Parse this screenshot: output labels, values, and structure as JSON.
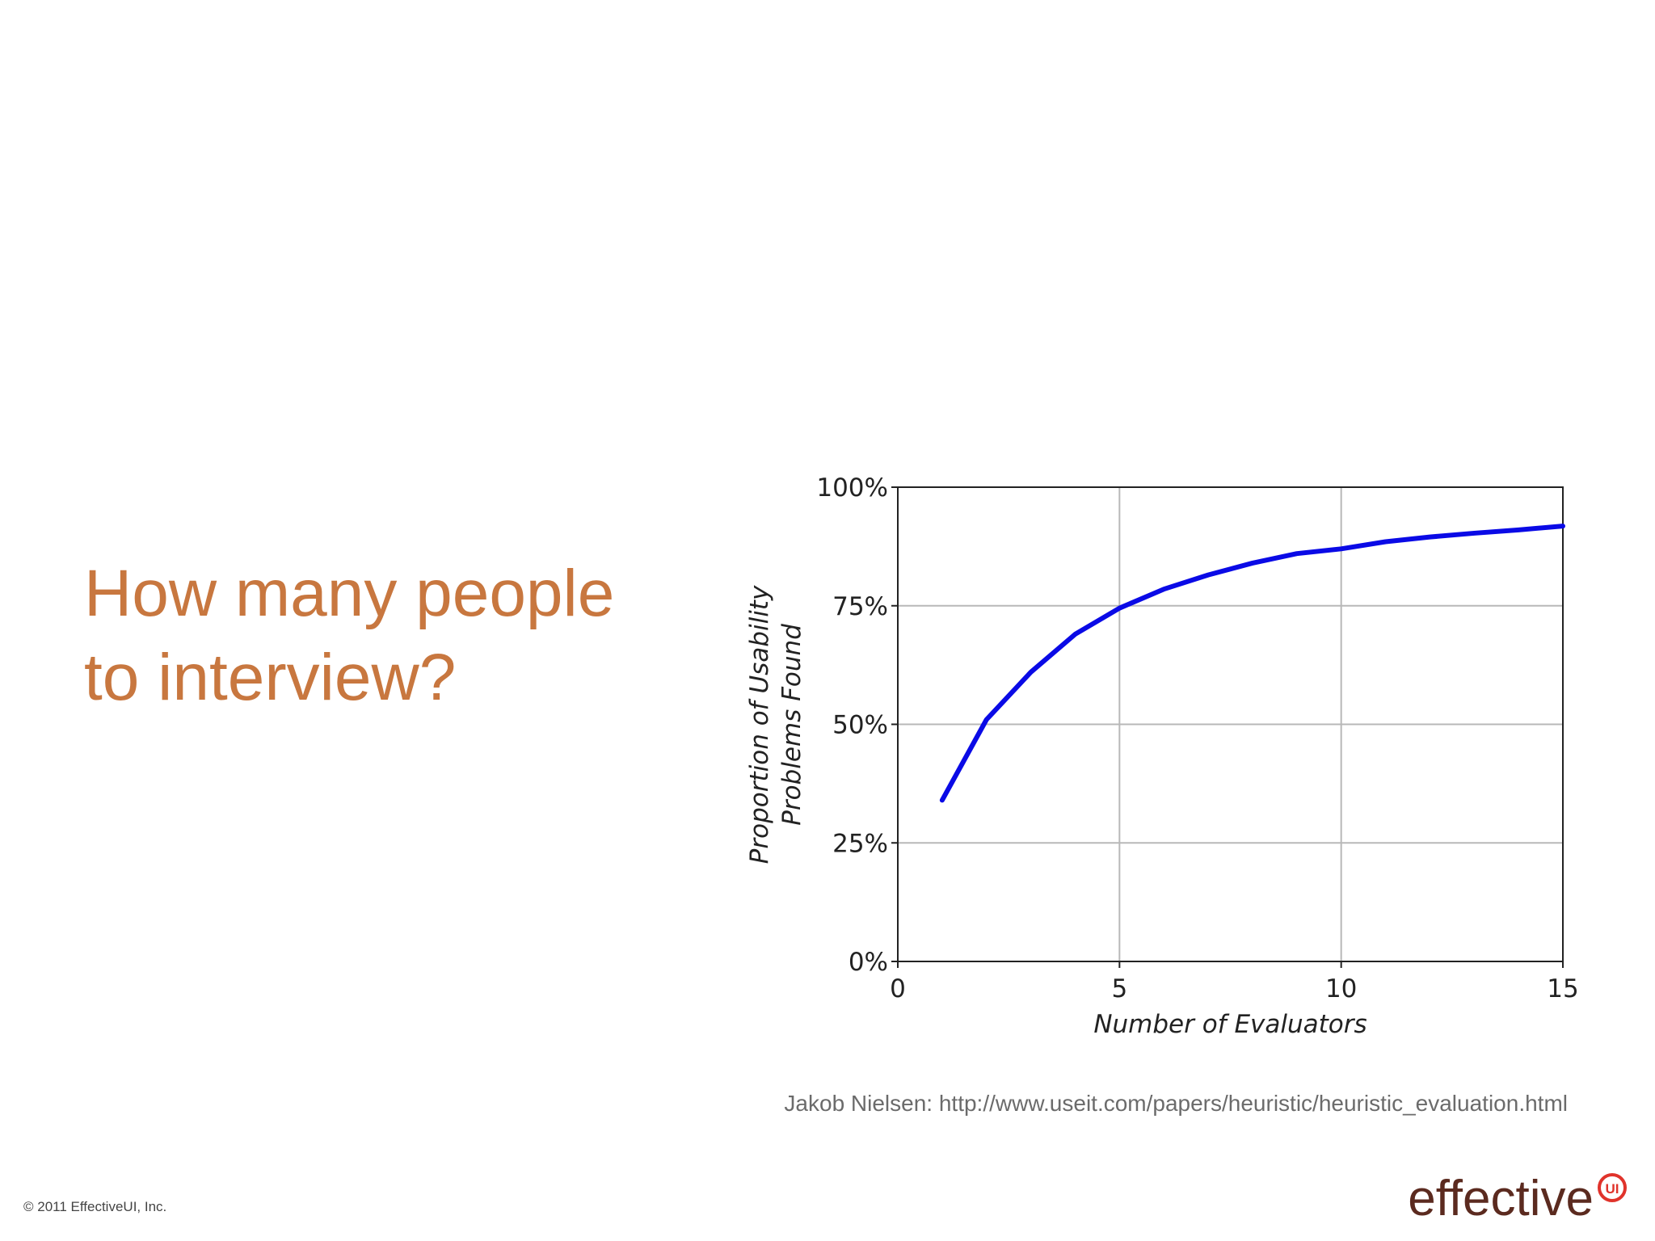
{
  "heading": [
    "How  many people",
    "to interview?"
  ],
  "chart_data": {
    "type": "line",
    "x": [
      1,
      2,
      3,
      4,
      5,
      6,
      7,
      8,
      9,
      10,
      11,
      12,
      13,
      14,
      15
    ],
    "values": [
      34,
      51,
      61,
      69,
      74.5,
      78.5,
      81.5,
      84,
      86,
      87,
      88.5,
      89.5,
      90.3,
      91,
      91.8
    ],
    "color": "#0a0ae6",
    "xlabel": "Number of Evaluators",
    "ylabel": [
      "Proportion of Usability",
      "Problems Found"
    ],
    "xlim": [
      0,
      15
    ],
    "xticks": [
      0,
      5,
      10,
      15
    ],
    "ylim": [
      0,
      100
    ],
    "yticks": [
      {
        "value": 0,
        "label": "0%"
      },
      {
        "value": 25,
        "label": "25%"
      },
      {
        "value": 50,
        "label": "50%"
      },
      {
        "value": 75,
        "label": "75%"
      },
      {
        "value": 100,
        "label": "100%"
      }
    ],
    "grid": true
  },
  "source": "Jakob Nielsen: http://www.useit.com/papers/heuristic/heuristic_evaluation.html",
  "copyright": "© 2011 EffectiveUI, Inc.",
  "logo": {
    "word": "effective",
    "badge": "UI"
  }
}
